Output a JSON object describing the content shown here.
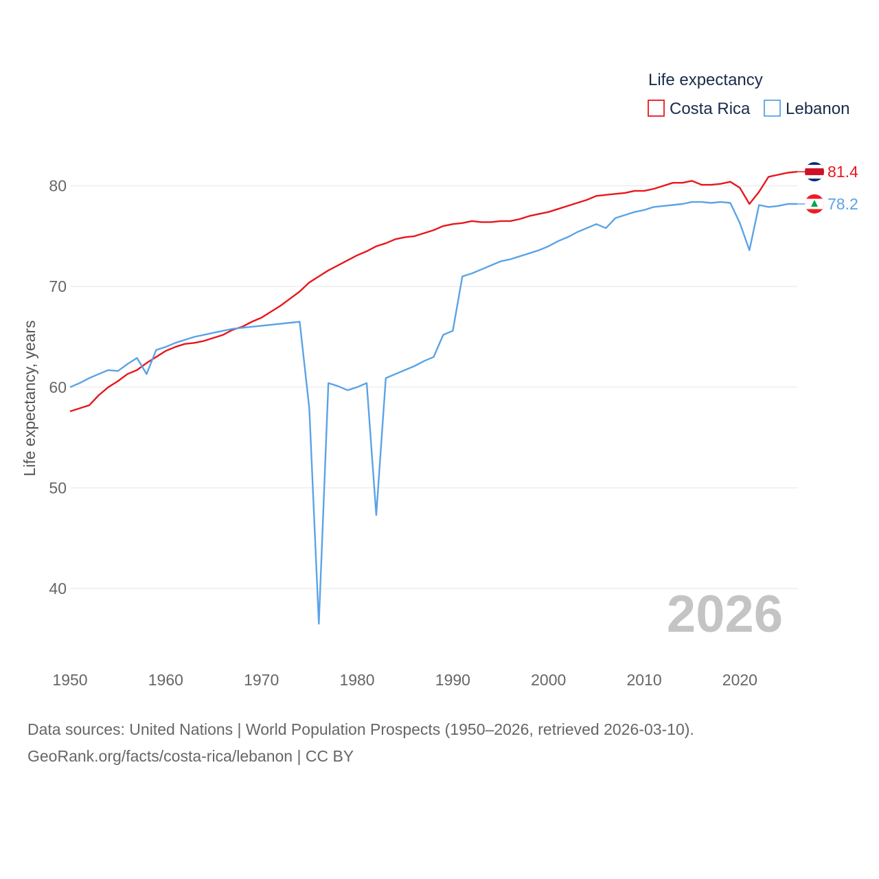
{
  "chart_data": {
    "type": "line",
    "ylabel": "Life expectancy, years",
    "xlim": [
      1950,
      2026
    ],
    "ylim": [
      34,
      86
    ],
    "x_ticks": [
      1950,
      1960,
      1970,
      1980,
      1990,
      2000,
      2010,
      2020
    ],
    "y_ticks": [
      40,
      50,
      60,
      70,
      80
    ],
    "grid": true,
    "legend": {
      "title": "Life expectancy",
      "position": "top-right"
    },
    "year_label": "2026",
    "series": [
      {
        "name": "Costa Rica",
        "color": "#e8161b",
        "end_label": "81.4",
        "x": [
          1950,
          1951,
          1952,
          1953,
          1954,
          1955,
          1956,
          1957,
          1958,
          1959,
          1960,
          1961,
          1962,
          1963,
          1964,
          1965,
          1966,
          1967,
          1968,
          1969,
          1970,
          1971,
          1972,
          1973,
          1974,
          1975,
          1976,
          1977,
          1978,
          1979,
          1980,
          1981,
          1982,
          1983,
          1984,
          1985,
          1986,
          1987,
          1988,
          1989,
          1990,
          1991,
          1992,
          1993,
          1994,
          1995,
          1996,
          1997,
          1998,
          1999,
          2000,
          2001,
          2002,
          2003,
          2004,
          2005,
          2006,
          2007,
          2008,
          2009,
          2010,
          2011,
          2012,
          2013,
          2014,
          2015,
          2016,
          2017,
          2018,
          2019,
          2020,
          2021,
          2022,
          2023,
          2024,
          2025,
          2026
        ],
        "values": [
          57.6,
          57.9,
          58.2,
          59.2,
          60.0,
          60.6,
          61.3,
          61.7,
          62.4,
          63.0,
          63.6,
          64.0,
          64.3,
          64.4,
          64.6,
          64.9,
          65.2,
          65.7,
          66.0,
          66.5,
          66.9,
          67.5,
          68.1,
          68.8,
          69.5,
          70.4,
          71.0,
          71.6,
          72.1,
          72.6,
          73.1,
          73.5,
          74.0,
          74.3,
          74.7,
          74.9,
          75.0,
          75.3,
          75.6,
          76.0,
          76.2,
          76.3,
          76.5,
          76.4,
          76.4,
          76.5,
          76.5,
          76.7,
          77.0,
          77.2,
          77.4,
          77.7,
          78.0,
          78.3,
          78.6,
          79.0,
          79.1,
          79.2,
          79.3,
          79.5,
          79.5,
          79.7,
          80.0,
          80.3,
          80.3,
          80.5,
          80.1,
          80.1,
          80.2,
          80.4,
          79.8,
          78.2,
          79.4,
          80.9,
          81.1,
          81.3,
          81.4
        ]
      },
      {
        "name": "Lebanon",
        "color": "#5aa3e6",
        "end_label": "78.2",
        "x": [
          1950,
          1951,
          1952,
          1953,
          1954,
          1955,
          1956,
          1957,
          1958,
          1959,
          1960,
          1961,
          1962,
          1963,
          1964,
          1965,
          1966,
          1967,
          1968,
          1969,
          1970,
          1971,
          1972,
          1973,
          1974,
          1975,
          1976,
          1977,
          1978,
          1979,
          1980,
          1981,
          1982,
          1983,
          1984,
          1985,
          1986,
          1987,
          1988,
          1989,
          1990,
          1991,
          1992,
          1993,
          1994,
          1995,
          1996,
          1997,
          1998,
          1999,
          2000,
          2001,
          2002,
          2003,
          2004,
          2005,
          2006,
          2007,
          2008,
          2009,
          2010,
          2011,
          2012,
          2013,
          2014,
          2015,
          2016,
          2017,
          2018,
          2019,
          2020,
          2021,
          2022,
          2023,
          2024,
          2025,
          2026
        ],
        "values": [
          60.0,
          60.4,
          60.9,
          61.3,
          61.7,
          61.6,
          62.3,
          62.9,
          61.3,
          63.7,
          64.0,
          64.4,
          64.7,
          65.0,
          65.2,
          65.4,
          65.6,
          65.8,
          65.9,
          66.0,
          66.1,
          66.2,
          66.3,
          66.4,
          66.5,
          57.9,
          36.5,
          60.4,
          60.1,
          59.7,
          60.0,
          60.4,
          47.3,
          60.9,
          61.3,
          61.7,
          62.1,
          62.6,
          63.0,
          65.2,
          65.6,
          71.0,
          71.3,
          71.7,
          72.1,
          72.5,
          72.7,
          73.0,
          73.3,
          73.6,
          74.0,
          74.5,
          74.9,
          75.4,
          75.8,
          76.2,
          75.8,
          76.8,
          77.1,
          77.4,
          77.6,
          77.9,
          78.0,
          78.1,
          78.2,
          78.4,
          78.4,
          78.3,
          78.4,
          78.3,
          76.3,
          73.6,
          78.1,
          77.9,
          78.0,
          78.2,
          78.2
        ]
      }
    ]
  },
  "footer": {
    "line1": "Data sources: United Nations | World Population Prospects (1950–2026, retrieved 2026-03-10).",
    "line2": "GeoRank.org/facts/costa-rica/lebanon | CC BY"
  }
}
